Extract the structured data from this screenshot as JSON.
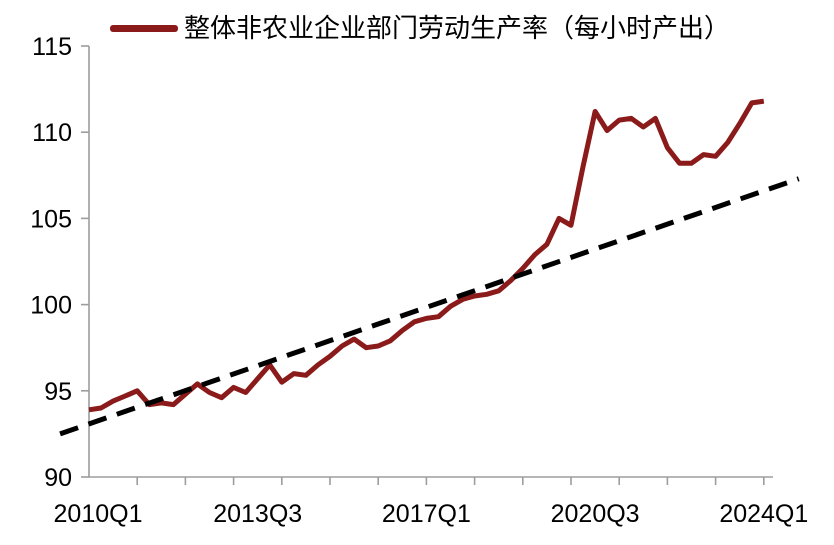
{
  "chart_data": {
    "type": "line",
    "title": "",
    "legend_position": "top",
    "background_color": "#ffffff",
    "axis_color": "#9d9d9d",
    "text_color": "#000000",
    "x_axis": {
      "frequency": "quarterly",
      "start": "2010Q1",
      "end": "2024Q1",
      "tick_labels": [
        "2010Q1",
        "2013Q3",
        "2017Q1",
        "2020Q3",
        "2024Q1"
      ],
      "tick_label_quarter_indices": [
        0,
        14,
        28,
        42,
        56
      ],
      "minor_tick_every_quarters": 4
    },
    "y_axis": {
      "min": 90,
      "max": 115,
      "ticks": [
        90,
        95,
        100,
        105,
        110,
        115
      ]
    },
    "grid": false,
    "categories": [
      "2010Q1",
      "2010Q2",
      "2010Q3",
      "2010Q4",
      "2011Q1",
      "2011Q2",
      "2011Q3",
      "2011Q4",
      "2012Q1",
      "2012Q2",
      "2012Q3",
      "2012Q4",
      "2013Q1",
      "2013Q2",
      "2013Q3",
      "2013Q4",
      "2014Q1",
      "2014Q2",
      "2014Q3",
      "2014Q4",
      "2015Q1",
      "2015Q2",
      "2015Q3",
      "2015Q4",
      "2016Q1",
      "2016Q2",
      "2016Q3",
      "2016Q4",
      "2017Q1",
      "2017Q2",
      "2017Q3",
      "2017Q4",
      "2018Q1",
      "2018Q2",
      "2018Q3",
      "2018Q4",
      "2019Q1",
      "2019Q2",
      "2019Q3",
      "2019Q4",
      "2020Q1",
      "2020Q2",
      "2020Q3",
      "2020Q4",
      "2021Q1",
      "2021Q2",
      "2021Q3",
      "2021Q4",
      "2022Q1",
      "2022Q2",
      "2022Q3",
      "2022Q4",
      "2023Q1",
      "2023Q2",
      "2023Q3",
      "2023Q4",
      "2024Q1"
    ],
    "series": [
      {
        "name": "整体非农业企业部门劳动生产率（每小时产出）",
        "color": "#8b1a1a",
        "style": "solid",
        "line_width": 5,
        "values": [
          93.9,
          94.0,
          94.4,
          94.7,
          95.0,
          94.2,
          94.3,
          94.2,
          94.8,
          95.4,
          94.9,
          94.6,
          95.2,
          94.9,
          95.7,
          96.5,
          95.5,
          96.0,
          95.9,
          96.5,
          97.0,
          97.6,
          98.0,
          97.5,
          97.6,
          97.9,
          98.5,
          99.0,
          99.2,
          99.3,
          99.9,
          100.3,
          100.5,
          100.6,
          100.8,
          101.4,
          102.1,
          102.9,
          103.5,
          105.0,
          104.6,
          108.0,
          111.2,
          110.1,
          110.7,
          110.8,
          110.3,
          110.8,
          109.1,
          108.2,
          108.2,
          108.7,
          108.6,
          109.4,
          110.5,
          111.7,
          111.8
        ]
      }
    ],
    "trendline": {
      "style": "dashed",
      "color": "#000000",
      "line_width": 5,
      "start": {
        "quarter_offset": -2.4,
        "value": 92.5
      },
      "end": {
        "quarter_offset": 58.9,
        "value": 107.3
      }
    }
  }
}
